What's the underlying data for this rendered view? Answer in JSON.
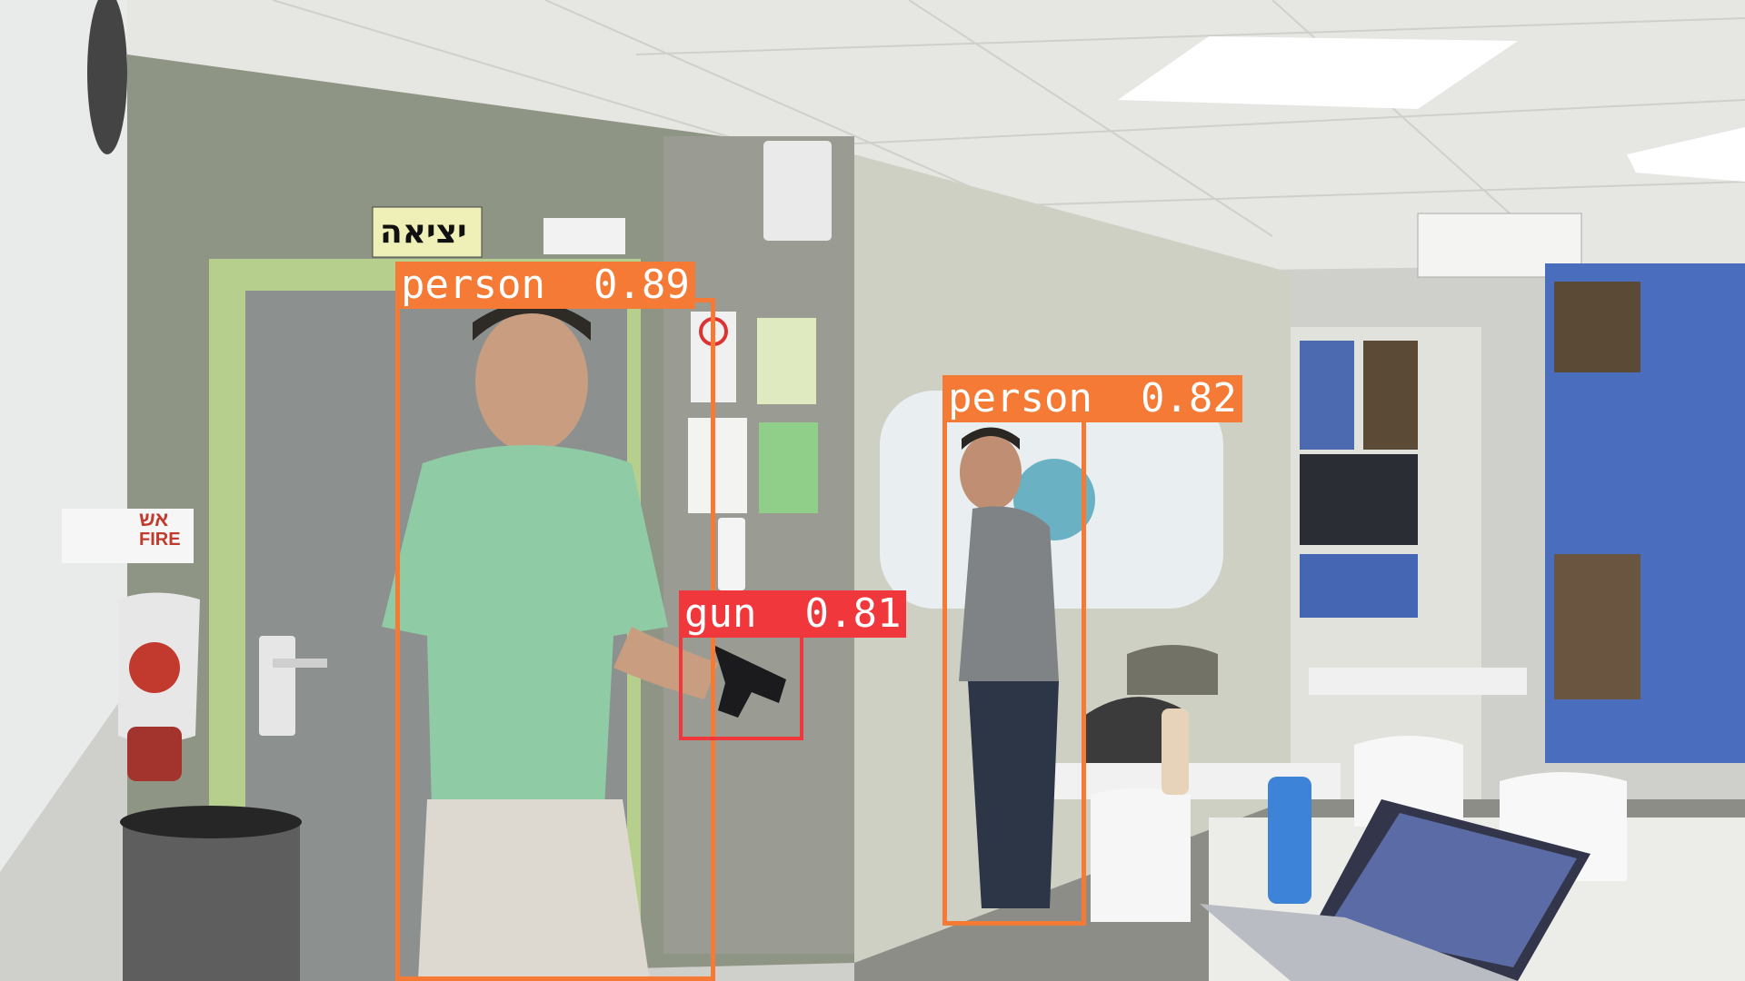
{
  "scene": {
    "signs": {
      "exit_sign": "יציאה",
      "fire_sign_top": "אש",
      "fire_sign_bottom": "FIRE"
    }
  },
  "detections": [
    {
      "label": "person",
      "score": "0.89",
      "color": "#f47a36"
    },
    {
      "label": "gun",
      "score": "0.81",
      "color": "#f0383c"
    },
    {
      "label": "person",
      "score": "0.82",
      "color": "#f47a36"
    }
  ]
}
